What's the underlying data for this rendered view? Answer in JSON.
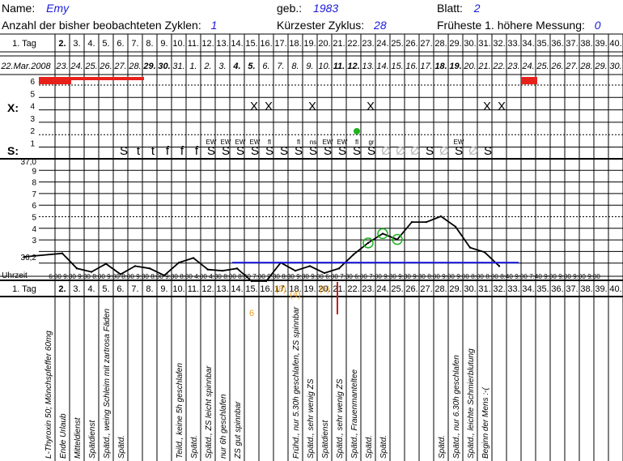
{
  "header": {
    "name_label": "Name:",
    "name_value": "Emy",
    "born_label": "geb.:",
    "born_value": "1983",
    "sheet_label": "Blatt:",
    "sheet_value": "2",
    "cycles_label": "Anzahl der bisher beobachteten Zyklen:",
    "cycles_value": "1",
    "shortest_label": "Kürzester Zyklus:",
    "shortest_value": "28",
    "earliest_label": "Früheste 1. höhere Messung:",
    "earliest_value": "0"
  },
  "grid": {
    "day_label": "1. Tag",
    "days": [
      "2.",
      "3.",
      "4.",
      "5.",
      "6.",
      "7.",
      "8.",
      "9.",
      "10.",
      "11.",
      "12.",
      "13.",
      "14.",
      "15.",
      "16.",
      "17.",
      "18.",
      "19.",
      "20.",
      "21.",
      "22.",
      "23.",
      "24.",
      "25.",
      "26.",
      "27.",
      "28.",
      "29.",
      "30.",
      "31.",
      "32.",
      "33.",
      "34.",
      "35.",
      "36.",
      "37.",
      "38.",
      "39.",
      "40."
    ],
    "days_bold": [
      0
    ],
    "start_date": "22.Mar.2008",
    "dates": [
      "23.",
      "24.",
      "25.",
      "26.",
      "27.",
      "28.",
      "29.",
      "30.",
      "31.",
      "1.",
      "2.",
      "3.",
      "4.",
      "5.",
      "6.",
      "7.",
      "8.",
      "9.",
      "10.",
      "11.",
      "12.",
      "13.",
      "14.",
      "15.",
      "16.",
      "17.",
      "18.",
      "19.",
      "20.",
      "21.",
      "22.",
      "23.",
      "24.",
      "25.",
      "26.",
      "27.",
      "28.",
      "29.",
      "30."
    ],
    "dates_bold": [
      6,
      7,
      12,
      13,
      19,
      20,
      26,
      27
    ],
    "x_label": "X:",
    "s_label": "S:",
    "uhrzeit_label": "Uhrzeit",
    "temp_top": "37,0",
    "temp_low": "36,2",
    "temp_ticks": [
      "9",
      "8",
      "7",
      "6",
      "5",
      "4",
      "3"
    ],
    "bleed_ticks": [
      "6",
      "5",
      "4",
      "3",
      "2",
      "1"
    ]
  },
  "bleeding": [
    {
      "col": 0,
      "level": 6
    },
    {
      "col": 1,
      "level": 6
    },
    {
      "col": 2,
      "level": 6
    },
    {
      "col": 3,
      "level": 5.5
    },
    {
      "col": 4,
      "level": 5.5
    },
    {
      "col": 5,
      "level": 5.5
    },
    {
      "col": 6,
      "level": 5.5
    },
    {
      "col": 7,
      "level": 5.5
    },
    {
      "col": 34,
      "level": 6
    }
  ],
  "x_marks": {
    "cols": [
      16,
      17,
      20,
      24,
      32,
      33
    ],
    "symbol": "X"
  },
  "green_dot_col": 24,
  "s_row": [
    {
      "col": 8,
      "sym": "S"
    },
    {
      "col": 9,
      "sym": "t"
    },
    {
      "col": 10,
      "sym": "t"
    },
    {
      "col": 11,
      "sym": "f"
    },
    {
      "col": 12,
      "sym": "f"
    },
    {
      "col": 13,
      "sym": "f"
    },
    {
      "col": 14,
      "sym": "S"
    },
    {
      "col": 15,
      "sym": "S"
    },
    {
      "col": 16,
      "sym": "S"
    },
    {
      "col": 17,
      "sym": "S"
    },
    {
      "col": 18,
      "sym": "S"
    },
    {
      "col": 19,
      "sym": "S"
    },
    {
      "col": 20,
      "sym": "S"
    },
    {
      "col": 21,
      "sym": "S"
    },
    {
      "col": 22,
      "sym": "S"
    },
    {
      "col": 23,
      "sym": "S"
    },
    {
      "col": 24,
      "sym": "S"
    },
    {
      "col": 25,
      "sym": "S"
    },
    {
      "col": 26,
      "sym": "Ø",
      "gray": true
    },
    {
      "col": 27,
      "sym": "Ø",
      "gray": true
    },
    {
      "col": 28,
      "sym": "Ø",
      "gray": true
    },
    {
      "col": 29,
      "sym": "S"
    },
    {
      "col": 30,
      "sym": "Ø",
      "gray": true
    },
    {
      "col": 31,
      "sym": "S"
    },
    {
      "col": 32,
      "sym": "Ø",
      "gray": true
    },
    {
      "col": 33,
      "sym": "S"
    }
  ],
  "s_small": [
    {
      "col": 14,
      "txt": "EW"
    },
    {
      "col": 15,
      "txt": "EW"
    },
    {
      "col": 16,
      "txt": "EW"
    },
    {
      "col": 17,
      "txt": "EW"
    },
    {
      "col": 18,
      "txt": "fl"
    },
    {
      "col": 20,
      "txt": "fl"
    },
    {
      "col": 21,
      "txt": "ns"
    },
    {
      "col": 22,
      "txt": "EW"
    },
    {
      "col": 23,
      "txt": "EW"
    },
    {
      "col": 24,
      "txt": "fl"
    },
    {
      "col": 25,
      "txt": "gr"
    },
    {
      "col": 31,
      "txt": "EW"
    }
  ],
  "chart_data": {
    "type": "line",
    "title": "",
    "x_unit": "cycle day",
    "y_unit": "°C",
    "ylim": [
      36.1,
      36.9
    ],
    "series": [
      {
        "points": [
          [
            1,
            36.2
          ],
          [
            2,
            36.23
          ],
          [
            3,
            36.1
          ],
          [
            4,
            36.07
          ],
          [
            5,
            36.14
          ],
          [
            6,
            36.05
          ],
          [
            7,
            36.12
          ],
          [
            8,
            36.1
          ],
          [
            9,
            36.04
          ],
          [
            10,
            36.15
          ],
          [
            11,
            36.19
          ],
          [
            12,
            36.09
          ],
          [
            13,
            36.08
          ],
          [
            14,
            36.1
          ],
          [
            15,
            35.99
          ],
          [
            16,
            35.99
          ],
          [
            17,
            36.15
          ],
          [
            18,
            36.08
          ],
          [
            19,
            36.12
          ],
          [
            20,
            36.06
          ],
          [
            21,
            36.1
          ],
          [
            22,
            36.22
          ],
          [
            23,
            36.32
          ],
          [
            24,
            36.4
          ],
          [
            25,
            36.35
          ],
          [
            26,
            36.5
          ],
          [
            27,
            36.5
          ],
          [
            28,
            36.55
          ],
          [
            29,
            36.46
          ],
          [
            30,
            36.28
          ],
          [
            31,
            36.24
          ],
          [
            32,
            36.12
          ]
        ],
        "circled_days": [
          23,
          24,
          25
        ]
      }
    ],
    "coverline": {
      "value": 36.15,
      "from_day": 14,
      "to_day": 33
    }
  },
  "times": [
    "6:00",
    "9:30",
    "9:30",
    "8:00",
    "9:00",
    "8:00",
    "9:30",
    "8:00",
    "9:30",
    "8:00",
    "4:00",
    "4:30",
    "8:00",
    "8:00",
    "7:00",
    "9:30",
    "8:30",
    "9:30",
    "9:00",
    "6:00",
    "7:30",
    "6:00",
    "7:00",
    "9:30",
    "9:30",
    "9:30",
    "8:00",
    "9:00",
    "9:00",
    "8:00",
    "8:00",
    "8:40",
    "9:00",
    "7:40",
    "9:00",
    "9:00",
    "9:00",
    "9:00"
  ],
  "orange_marks": [
    {
      "col": 15,
      "txt": "6"
    },
    {
      "col": 17,
      "txt": "(8)"
    },
    {
      "col": 18,
      "txt": "(4)"
    },
    {
      "col": 20,
      "txt": "(6)"
    }
  ],
  "notes": [
    {
      "col": 1,
      "txt": "L-Thyroxin 50; Mönchspfeffer 60mg"
    },
    {
      "col": 2,
      "txt": "Ende Urlaub"
    },
    {
      "col": 3,
      "txt": "Mitteldienst"
    },
    {
      "col": 4,
      "txt": "Spätdienst"
    },
    {
      "col": 5,
      "txt": "Spätd., weing Schleim mit zartrosa Fäden"
    },
    {
      "col": 6,
      "txt": "Spätd."
    },
    {
      "col": 10,
      "txt": "Teild., keine 5h geschlafen"
    },
    {
      "col": 11,
      "txt": "Spätd."
    },
    {
      "col": 12,
      "txt": "Spätd., ZS leicht spinnbar"
    },
    {
      "col": 13,
      "txt": "nur 6h geschlafen"
    },
    {
      "col": 14,
      "txt": "ZS gut spinnbar"
    },
    {
      "col": 18,
      "txt": "Frühd., nur 5.30h geschlafen, ZS spinnbar"
    },
    {
      "col": 19,
      "txt": "Spätd., sehr wenig ZS"
    },
    {
      "col": 20,
      "txt": "Spätdienst"
    },
    {
      "col": 21,
      "txt": "Spätd., sehr wenig ZS"
    },
    {
      "col": 22,
      "txt": "Spätd., Frauenmanteltee"
    },
    {
      "col": 23,
      "txt": "Spätd."
    },
    {
      "col": 24,
      "txt": "Spätd."
    },
    {
      "col": 28,
      "txt": "Spätd."
    },
    {
      "col": 29,
      "txt": "Spätd., nur 6.30h geschlafen"
    },
    {
      "col": 30,
      "txt": "Spätd., leichte Schmierblutung"
    },
    {
      "col": 31,
      "txt": "Beginn der Mens :-("
    }
  ],
  "colors": {
    "accent": "#1a1adc",
    "bleed": "#e8201a",
    "orange": "#e8a020",
    "green": "#1db31d",
    "coverline": "#1a1adc",
    "red_line": "#c0201a"
  }
}
